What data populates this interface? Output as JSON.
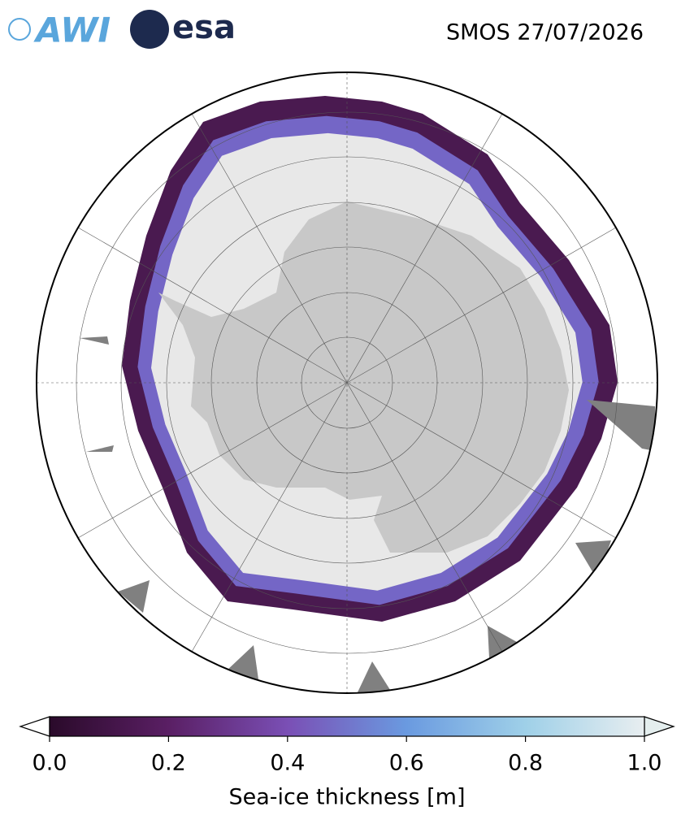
{
  "header": {
    "logo_awi": "AWI",
    "logo_esa": "esa",
    "title": "SMOS 27/07/2026"
  },
  "colorbar": {
    "lim": [
      0,
      1
    ],
    "ticks": [
      {
        "value": 0,
        "label": "0.0"
      },
      {
        "value": 0.2,
        "label": "0.2"
      },
      {
        "value": 0.4,
        "label": "0.4"
      },
      {
        "value": 0.6,
        "label": "0.6"
      },
      {
        "value": 0.8,
        "label": "0.8"
      },
      {
        "value": 1,
        "label": "1.0"
      }
    ],
    "colors": [
      "#2a0a2a",
      "#5a1f64",
      "#7a4fb5",
      "#6a9ae0",
      "#9fd0e8",
      "#e8eef0"
    ],
    "label": "Sea-ice thickness [m]"
  }
}
